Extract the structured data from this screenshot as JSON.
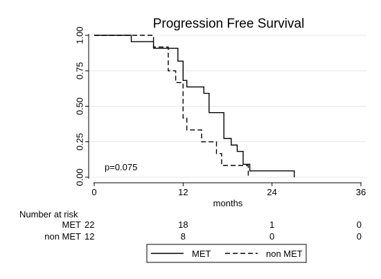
{
  "chart_data": {
    "type": "line",
    "step": true,
    "title": "Progression Free Survival",
    "xlabel": "months",
    "ylabel": "",
    "xlim": [
      0,
      36
    ],
    "ylim": [
      0,
      1
    ],
    "xticks": [
      "0",
      "12",
      "24",
      "36"
    ],
    "yticks": [
      "0.00",
      "0.25",
      "0.50",
      "0.75",
      "1.00"
    ],
    "grid": "horizontal",
    "annotation": "p=0.075",
    "legend_position": "bottom",
    "series": [
      {
        "name": "MET",
        "line_style": "solid",
        "points": [
          [
            0,
            1.0
          ],
          [
            5,
            1.0
          ],
          [
            5,
            0.955
          ],
          [
            8,
            0.955
          ],
          [
            8,
            0.909
          ],
          [
            11.3,
            0.909
          ],
          [
            11.3,
            0.818
          ],
          [
            12,
            0.818
          ],
          [
            12,
            0.682
          ],
          [
            12.5,
            0.682
          ],
          [
            12.5,
            0.636
          ],
          [
            14.8,
            0.636
          ],
          [
            14.8,
            0.591
          ],
          [
            15.5,
            0.591
          ],
          [
            15.5,
            0.455
          ],
          [
            17.5,
            0.455
          ],
          [
            17.5,
            0.273
          ],
          [
            18.5,
            0.273
          ],
          [
            18.5,
            0.227
          ],
          [
            19.3,
            0.227
          ],
          [
            19.3,
            0.182
          ],
          [
            20.1,
            0.182
          ],
          [
            20.1,
            0.091
          ],
          [
            21,
            0.091
          ],
          [
            21,
            0.045
          ],
          [
            27,
            0.045
          ],
          [
            27,
            0.0
          ]
        ]
      },
      {
        "name": "non MET",
        "line_style": "dashed",
        "points": [
          [
            0,
            1.0
          ],
          [
            8,
            1.0
          ],
          [
            8,
            0.917
          ],
          [
            10,
            0.917
          ],
          [
            10,
            0.75
          ],
          [
            11,
            0.75
          ],
          [
            11,
            0.667
          ],
          [
            12,
            0.667
          ],
          [
            12,
            0.417
          ],
          [
            12.5,
            0.417
          ],
          [
            12.5,
            0.333
          ],
          [
            14.5,
            0.333
          ],
          [
            14.5,
            0.25
          ],
          [
            16.5,
            0.25
          ],
          [
            16.5,
            0.167
          ],
          [
            17.2,
            0.167
          ],
          [
            17.2,
            0.083
          ],
          [
            20.8,
            0.083
          ],
          [
            20.8,
            0.0
          ]
        ]
      }
    ]
  },
  "risk_table": {
    "heading": "Number at risk",
    "rows": [
      {
        "label": "MET",
        "values": [
          "22",
          "18",
          "1",
          "0"
        ]
      },
      {
        "label": "non MET",
        "values": [
          "12",
          "8",
          "0",
          "0"
        ]
      }
    ]
  },
  "colors": {
    "line": "#000000",
    "grid": "#e6e6e6",
    "axis": "#000000",
    "background": "#ffffff"
  }
}
